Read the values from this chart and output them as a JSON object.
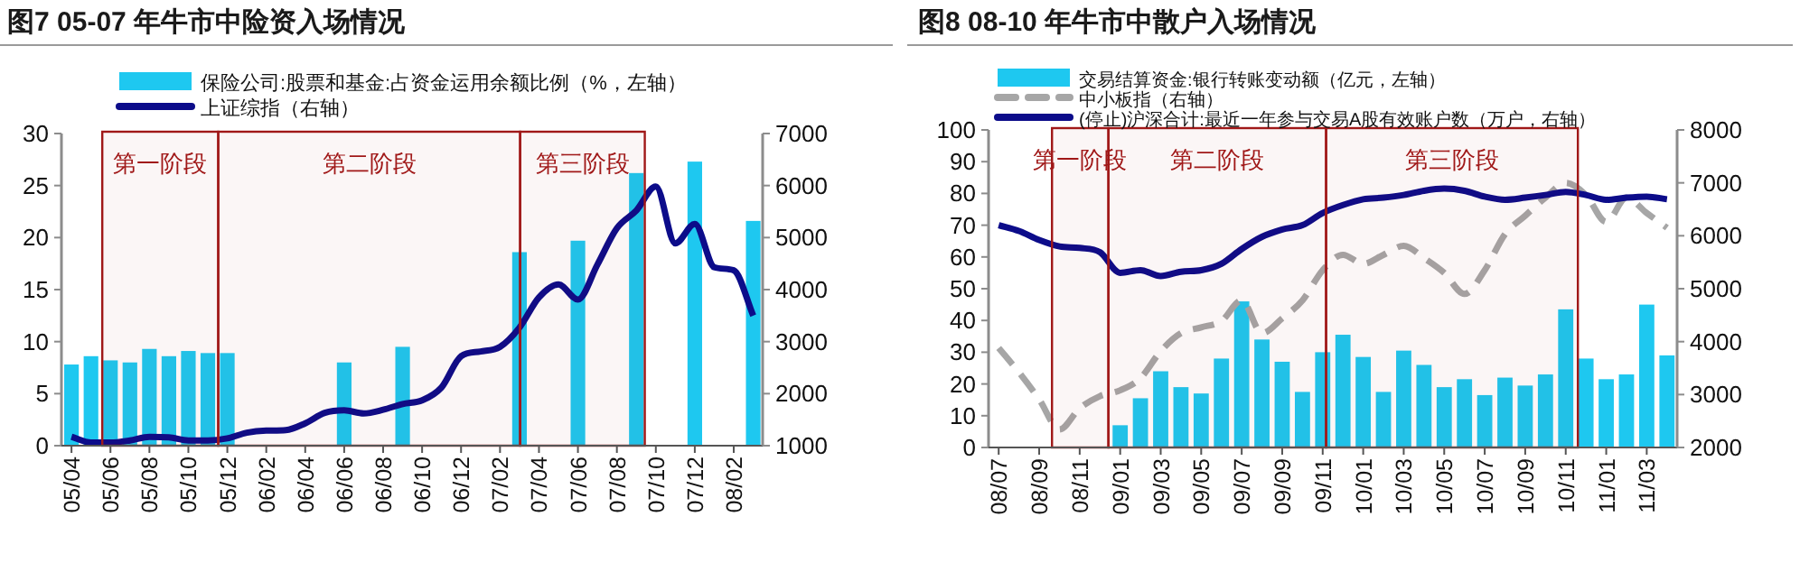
{
  "chart_data": [
    {
      "type": "bar",
      "title": "图7  05-07 年牛市中险资入场情况",
      "legend": "top",
      "xlim": [
        "2005-03-16",
        "2008-03-16"
      ],
      "xticks": [
        {
          "value": "2005-04",
          "label": "05/04"
        },
        {
          "value": "2005-06",
          "label": "05/06"
        },
        {
          "value": "2005-08",
          "label": "05/08"
        },
        {
          "value": "2005-10",
          "label": "05/10"
        },
        {
          "value": "2005-12",
          "label": "05/12"
        },
        {
          "value": "2006-02",
          "label": "06/02"
        },
        {
          "value": "2006-04",
          "label": "06/04"
        },
        {
          "value": "2006-06",
          "label": "06/06"
        },
        {
          "value": "2006-08",
          "label": "06/08"
        },
        {
          "value": "2006-10",
          "label": "06/10"
        },
        {
          "value": "2006-12",
          "label": "06/12"
        },
        {
          "value": "2007-02",
          "label": "07/02"
        },
        {
          "value": "2007-04",
          "label": "07/04"
        },
        {
          "value": "2007-06",
          "label": "07/06"
        },
        {
          "value": "2007-08",
          "label": "07/08"
        },
        {
          "value": "2007-10",
          "label": "07/10"
        },
        {
          "value": "2007-12",
          "label": "07/12"
        },
        {
          "value": "2008-02",
          "label": "08/02"
        }
      ],
      "ylim": [
        0,
        30
      ],
      "yticks": [
        0,
        5,
        10,
        15,
        20,
        25,
        30
      ],
      "y2lim": [
        1000,
        7000
      ],
      "y2ticks": [
        1000,
        2000,
        3000,
        4000,
        5000,
        6000,
        7000
      ],
      "bands": [
        {
          "axis": "x",
          "from": "2005-05-19",
          "to": "2005-11-17",
          "label": "第一阶段",
          "color": "#a01818"
        },
        {
          "axis": "x",
          "from": "2005-11-17",
          "to": "2007-03-02",
          "label": "第二阶段",
          "color": "#a01818"
        },
        {
          "axis": "x",
          "from": "2007-03-02",
          "to": "2007-09-14",
          "label": "第三阶段",
          "color": "#a01818"
        }
      ],
      "series": [
        {
          "name": "保险公司:股票和基金:占资金运用余额比例（%，左轴）",
          "color": "#1ec8f0",
          "x": [
            "2005-04",
            "2005-05",
            "2005-06",
            "2005-07",
            "2005-08",
            "2005-09",
            "2005-10",
            "2005-11",
            "2005-12",
            "2006-06",
            "2006-09",
            "2007-03",
            "2007-06",
            "2007-09",
            "2007-12",
            "2008-03"
          ],
          "values": [
            7.8,
            8.6,
            8.2,
            8.0,
            9.3,
            8.6,
            9.1,
            8.9,
            8.9,
            8.0,
            9.5,
            18.6,
            19.7,
            26.2,
            27.3,
            21.6
          ]
        },
        {
          "name": "上证综指（右轴）",
          "type": "line",
          "axis": "y2",
          "color": "#0c0c8a",
          "x": [
            "2005-04",
            "2005-05",
            "2005-06",
            "2005-07",
            "2005-08",
            "2005-09",
            "2005-10",
            "2005-11",
            "2005-12",
            "2006-01",
            "2006-02",
            "2006-03",
            "2006-04",
            "2006-05",
            "2006-06",
            "2006-07",
            "2006-08",
            "2006-09",
            "2006-10",
            "2006-11",
            "2006-12",
            "2007-01",
            "2007-02",
            "2007-03",
            "2007-04",
            "2007-05",
            "2007-06",
            "2007-07",
            "2007-08",
            "2007-09",
            "2007-10",
            "2007-11",
            "2007-12",
            "2008-01",
            "2008-02",
            "2008-03"
          ],
          "values": [
            1170,
            1060,
            1060,
            1100,
            1170,
            1160,
            1100,
            1100,
            1140,
            1250,
            1290,
            1300,
            1430,
            1630,
            1680,
            1620,
            1690,
            1800,
            1870,
            2120,
            2720,
            2810,
            2900,
            3270,
            3850,
            4100,
            3810,
            4480,
            5180,
            5520,
            5980,
            4890,
            5260,
            4430,
            4370,
            3500
          ]
        }
      ]
    },
    {
      "type": "bar",
      "title": "图8  08-10 年牛市中散户入场情况",
      "legend": "top",
      "xlim": [
        "2008-06-16",
        "2011-04-16"
      ],
      "xticks": [
        {
          "value": "2008-07",
          "label": "08/07"
        },
        {
          "value": "2008-09",
          "label": "08/09"
        },
        {
          "value": "2008-11",
          "label": "08/11"
        },
        {
          "value": "2009-01",
          "label": "09/01"
        },
        {
          "value": "2009-03",
          "label": "09/03"
        },
        {
          "value": "2009-05",
          "label": "09/05"
        },
        {
          "value": "2009-07",
          "label": "09/07"
        },
        {
          "value": "2009-09",
          "label": "09/09"
        },
        {
          "value": "2009-11",
          "label": "09/11"
        },
        {
          "value": "2010-01",
          "label": "10/01"
        },
        {
          "value": "2010-03",
          "label": "10/03"
        },
        {
          "value": "2010-05",
          "label": "10/05"
        },
        {
          "value": "2010-07",
          "label": "10/07"
        },
        {
          "value": "2010-09",
          "label": "10/09"
        },
        {
          "value": "2010-11",
          "label": "10/11"
        },
        {
          "value": "2011-01",
          "label": "11/01"
        },
        {
          "value": "2011-03",
          "label": "11/03"
        }
      ],
      "ylim": [
        0,
        100
      ],
      "yticks": [
        0,
        10,
        20,
        30,
        40,
        50,
        60,
        70,
        80,
        90,
        100
      ],
      "y2lim": [
        2000,
        8000
      ],
      "y2ticks": [
        2000,
        3000,
        4000,
        5000,
        6000,
        7000,
        8000
      ],
      "bands": [
        {
          "axis": "x",
          "from": "2008-09-20",
          "to": "2008-12-14",
          "label": "第一阶段",
          "color": "#a01818"
        },
        {
          "axis": "x",
          "from": "2008-12-14",
          "to": "2009-11-06",
          "label": "第二阶段",
          "color": "#a01818"
        },
        {
          "axis": "x",
          "from": "2009-11-06",
          "to": "2010-11-19",
          "label": "第三阶段",
          "color": "#a01818"
        }
      ],
      "series": [
        {
          "name": "交易结算资金:银行转账变动额（亿元，左轴）",
          "color": "#1ec8f0",
          "x": [
            "2009-01",
            "2009-02",
            "2009-03",
            "2009-04",
            "2009-05",
            "2009-06",
            "2009-07",
            "2009-08",
            "2009-09",
            "2009-10",
            "2009-11",
            "2009-12",
            "2010-01",
            "2010-02",
            "2010-03",
            "2010-04",
            "2010-05",
            "2010-06",
            "2010-07",
            "2010-08",
            "2010-09",
            "2010-10",
            "2010-11",
            "2010-12",
            "2011-01",
            "2011-02",
            "2011-03",
            "2011-04"
          ],
          "values": [
            7,
            15.5,
            24,
            19,
            17,
            28,
            46,
            34,
            27,
            17.5,
            30,
            35.5,
            28.5,
            17.5,
            30.5,
            26,
            19,
            21.5,
            16.5,
            22,
            19.5,
            23,
            43.5,
            28,
            21.5,
            23,
            45,
            29
          ]
        },
        {
          "name": "中小板指（右轴）",
          "type": "line",
          "axis": "y2",
          "line_style": "dashed",
          "color": "#a6a6a6",
          "x": [
            "2008-07",
            "2008-08",
            "2008-09",
            "2008-10",
            "2008-11",
            "2008-12",
            "2009-01",
            "2009-02",
            "2009-03",
            "2009-04",
            "2009-05",
            "2009-06",
            "2009-07",
            "2009-08",
            "2009-09",
            "2009-10",
            "2009-11",
            "2009-12",
            "2010-01",
            "2010-02",
            "2010-03",
            "2010-04",
            "2010-05",
            "2010-06",
            "2010-07",
            "2010-08",
            "2010-09",
            "2010-10",
            "2010-11",
            "2010-12",
            "2011-01",
            "2011-02",
            "2011-03",
            "2011-04"
          ],
          "values": [
            3880,
            3420,
            2910,
            2340,
            2740,
            2970,
            3080,
            3310,
            3820,
            4160,
            4270,
            4390,
            4780,
            4160,
            4440,
            4780,
            5350,
            5640,
            5470,
            5640,
            5810,
            5580,
            5300,
            4900,
            5350,
            6030,
            6380,
            6720,
            7000,
            6770,
            6260,
            6720,
            6430,
            6150
          ]
        },
        {
          "name": "(停止)沪深合计:最近一年参与交易A股有效账户数（万户，右轴）",
          "type": "line",
          "axis": "y2",
          "color": "#0c0c8a",
          "x": [
            "2008-07",
            "2008-08",
            "2008-09",
            "2008-10",
            "2008-11",
            "2008-12",
            "2009-01",
            "2009-02",
            "2009-03",
            "2009-04",
            "2009-05",
            "2009-06",
            "2009-07",
            "2009-08",
            "2009-09",
            "2009-10",
            "2009-11",
            "2009-12",
            "2010-01",
            "2010-02",
            "2010-03",
            "2010-04",
            "2010-05",
            "2010-06",
            "2010-07",
            "2010-08",
            "2010-09",
            "2010-10",
            "2010-11",
            "2010-12",
            "2011-01",
            "2011-02",
            "2011-03",
            "2011-04"
          ],
          "values": [
            6200,
            6090,
            5920,
            5800,
            5770,
            5690,
            5300,
            5350,
            5240,
            5320,
            5350,
            5470,
            5750,
            5980,
            6120,
            6200,
            6430,
            6580,
            6690,
            6720,
            6770,
            6850,
            6890,
            6850,
            6740,
            6680,
            6720,
            6770,
            6830,
            6770,
            6680,
            6720,
            6740,
            6690
          ]
        }
      ]
    }
  ]
}
